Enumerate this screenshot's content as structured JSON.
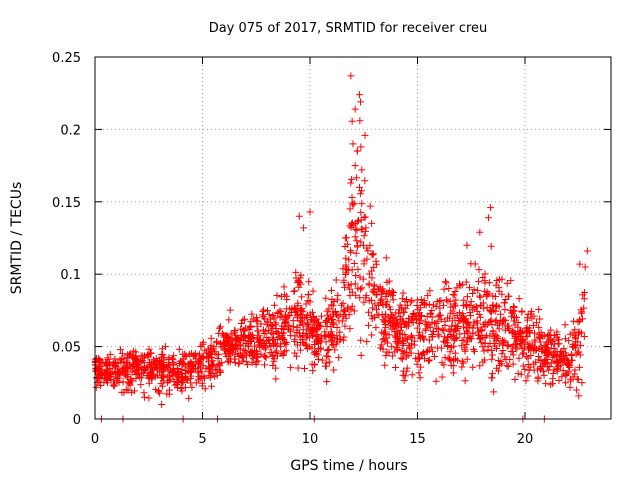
{
  "chart_data": {
    "type": "scatter",
    "title": "Day 075 of 2017, SRMTID for receiver creu",
    "xlabel": "GPS time / hours",
    "ylabel": "SRMTID / TECUs",
    "xlim": [
      0,
      24
    ],
    "ylim": [
      0,
      0.25
    ],
    "xticks": [
      0,
      5,
      10,
      15,
      20
    ],
    "xtick_labels": [
      "0",
      "5",
      "10",
      "15",
      "20"
    ],
    "yticks": [
      0,
      0.05,
      0.1,
      0.15,
      0.2,
      0.25
    ],
    "ytick_labels": [
      "0",
      "0.05",
      "0.1",
      "0.15",
      "0.2",
      "0.25"
    ],
    "grid": true,
    "marker": "+",
    "marker_color": "#ff0000",
    "series": [
      {
        "name": "SRMTID",
        "envelope": [
          {
            "x": 0.0,
            "y": 0.035,
            "spread": 0.018
          },
          {
            "x": 2.0,
            "y": 0.035,
            "spread": 0.018
          },
          {
            "x": 4.0,
            "y": 0.033,
            "spread": 0.02
          },
          {
            "x": 5.0,
            "y": 0.036,
            "spread": 0.02
          },
          {
            "x": 6.0,
            "y": 0.05,
            "spread": 0.022
          },
          {
            "x": 8.0,
            "y": 0.055,
            "spread": 0.025
          },
          {
            "x": 9.5,
            "y": 0.07,
            "spread": 0.04
          },
          {
            "x": 10.5,
            "y": 0.055,
            "spread": 0.03
          },
          {
            "x": 11.5,
            "y": 0.07,
            "spread": 0.04
          },
          {
            "x": 12.0,
            "y": 0.13,
            "spread": 0.09
          },
          {
            "x": 12.5,
            "y": 0.12,
            "spread": 0.09
          },
          {
            "x": 13.0,
            "y": 0.08,
            "spread": 0.04
          },
          {
            "x": 14.0,
            "y": 0.06,
            "spread": 0.035
          },
          {
            "x": 16.0,
            "y": 0.062,
            "spread": 0.04
          },
          {
            "x": 18.5,
            "y": 0.07,
            "spread": 0.05
          },
          {
            "x": 20.0,
            "y": 0.055,
            "spread": 0.035
          },
          {
            "x": 21.0,
            "y": 0.045,
            "spread": 0.03
          },
          {
            "x": 22.0,
            "y": 0.04,
            "spread": 0.025
          },
          {
            "x": 22.8,
            "y": 0.06,
            "spread": 0.04
          }
        ],
        "points": [
          [
            0.3,
            0.0
          ],
          [
            1.3,
            0.0
          ],
          [
            4.1,
            0.0
          ],
          [
            5.7,
            0.0
          ],
          [
            10.2,
            0.0
          ],
          [
            19.9,
            0.0
          ],
          [
            20.9,
            0.0
          ],
          [
            11.9,
            0.237
          ],
          [
            12.1,
            0.214
          ],
          [
            12.3,
            0.224
          ],
          [
            12.35,
            0.219
          ],
          [
            12.32,
            0.206
          ],
          [
            12.2,
            0.185
          ],
          [
            12.0,
            0.19
          ],
          [
            12.1,
            0.175
          ],
          [
            12.3,
            0.16
          ],
          [
            12.0,
            0.148
          ],
          [
            11.9,
            0.163
          ],
          [
            12.8,
            0.147
          ],
          [
            12.6,
            0.132
          ],
          [
            9.5,
            0.14
          ],
          [
            9.7,
            0.132
          ],
          [
            10.0,
            0.143
          ],
          [
            18.4,
            0.146
          ],
          [
            18.3,
            0.139
          ],
          [
            17.9,
            0.129
          ],
          [
            17.3,
            0.12
          ],
          [
            22.9,
            0.116
          ],
          [
            22.8,
            0.105
          ],
          [
            22.55,
            0.107
          ],
          [
            22.5,
            0.016
          ],
          [
            22.4,
            0.02
          ],
          [
            2.3,
            0.015
          ],
          [
            3.1,
            0.01
          ]
        ]
      }
    ]
  }
}
